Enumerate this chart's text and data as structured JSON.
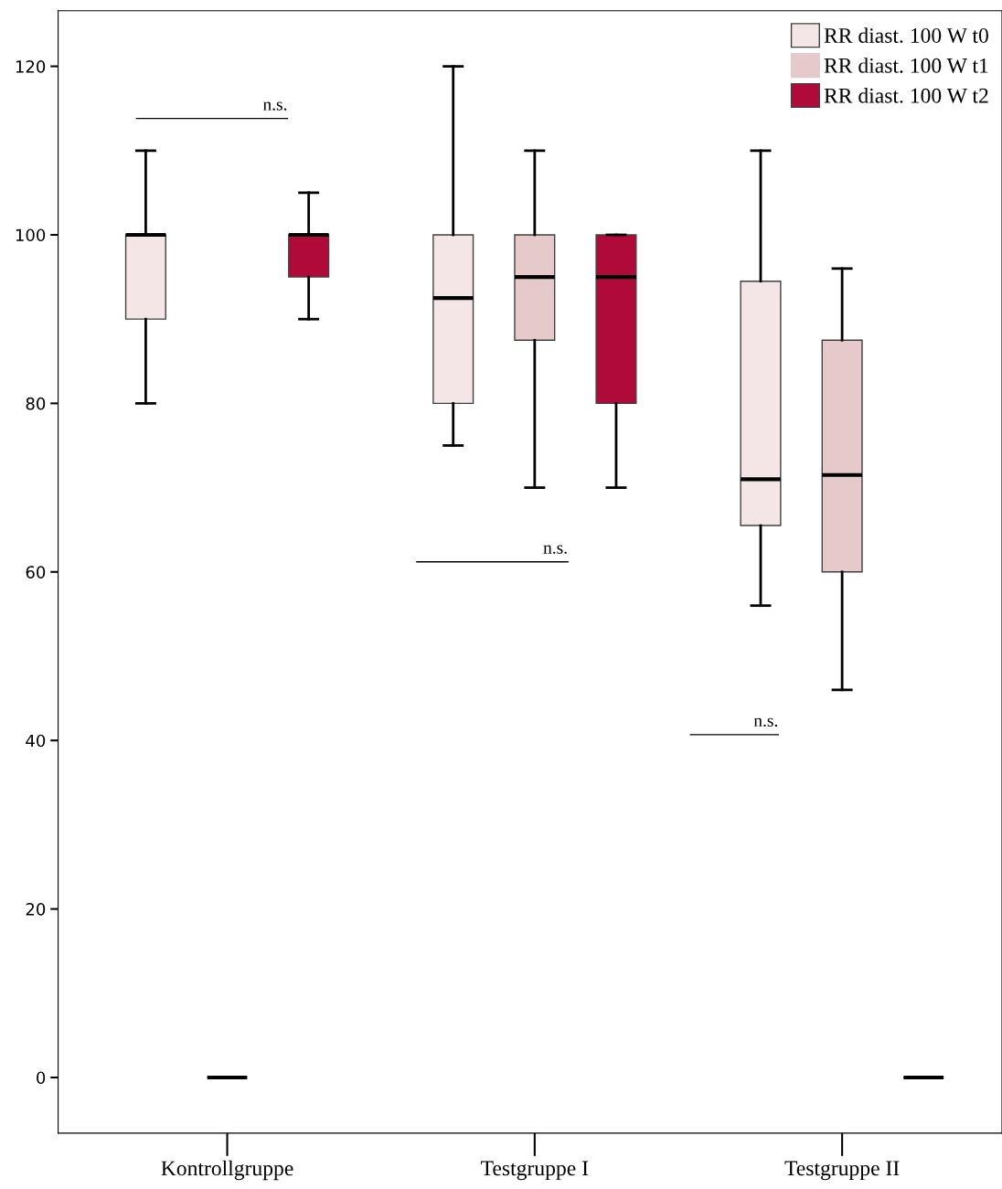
{
  "chart_data": {
    "type": "box",
    "categories": [
      "Kontrollgruppe",
      "Testgruppe I",
      "Testgruppe II"
    ],
    "series": [
      {
        "name": "RR diast. 100 W t0",
        "color": "#f4e6e6",
        "boxes": [
          {
            "low": 80,
            "q1": 90,
            "median": 100,
            "q3": 100,
            "high": 110
          },
          {
            "low": 75,
            "q1": 80,
            "median": 92.5,
            "q3": 100,
            "high": 120
          },
          {
            "low": 56,
            "q1": 65.5,
            "median": 71,
            "q3": 94.5,
            "high": 110
          }
        ]
      },
      {
        "name": "RR diast. 100 W t1",
        "color": "#e6cacb",
        "boxes": [
          {
            "low": 0,
            "q1": 0,
            "median": 0,
            "q3": 0,
            "high": 0
          },
          {
            "low": 70,
            "q1": 87.5,
            "median": 95,
            "q3": 100,
            "high": 110
          },
          {
            "low": 46,
            "q1": 60,
            "median": 71.5,
            "q3": 87.5,
            "high": 96
          }
        ]
      },
      {
        "name": "RR diast. 100 W t2",
        "color": "#b00a3a",
        "boxes": [
          {
            "low": 90,
            "q1": 95,
            "median": 100,
            "q3": 100,
            "high": 105
          },
          {
            "low": 70,
            "q1": 80,
            "median": 95,
            "q3": 100,
            "high": 100
          },
          {
            "low": 0,
            "q1": 0,
            "median": 0,
            "q3": 0,
            "high": 0
          }
        ]
      }
    ],
    "ylim": [
      -6.6,
      126.6
    ],
    "yticks": [
      0,
      20,
      40,
      60,
      80,
      100,
      120
    ],
    "grid": false,
    "legend": "top right",
    "annotations": [
      "n.s.",
      "n.s.",
      "n.s."
    ]
  }
}
